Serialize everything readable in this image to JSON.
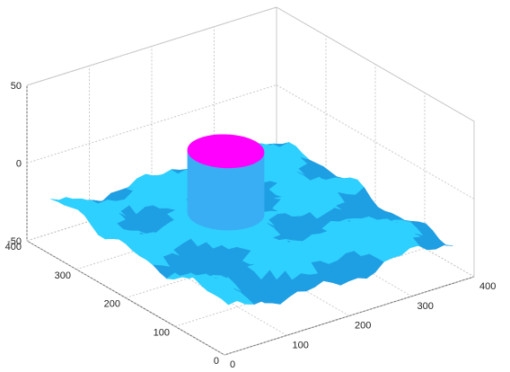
{
  "chart_data": {
    "type": "surface",
    "title": "",
    "xlabel": "",
    "ylabel": "",
    "zlabel": "",
    "xlim": [
      0,
      400
    ],
    "ylim": [
      0,
      400
    ],
    "zlim": [
      -50,
      50
    ],
    "grid": true,
    "colors": {
      "surface_base": "#2ed0ff",
      "surface_shadow": "#1f9fe3",
      "cylinder_side": "#39aef4",
      "cylinder_top": "#ff00ff",
      "grid": "#c8c8c8",
      "axis": "#666666"
    },
    "x_ticks": [
      {
        "value": 0,
        "label": "0"
      },
      {
        "value": 100,
        "label": "100"
      },
      {
        "value": 200,
        "label": "200"
      },
      {
        "value": 300,
        "label": "300"
      },
      {
        "value": 400,
        "label": "400"
      }
    ],
    "y_ticks": [
      {
        "value": 0,
        "label": "0"
      },
      {
        "value": 100,
        "label": "100"
      },
      {
        "value": 200,
        "label": "200"
      },
      {
        "value": 300,
        "label": "300"
      },
      {
        "value": 400,
        "label": "400"
      }
    ],
    "z_ticks": [
      {
        "value": -50,
        "label": "-50"
      },
      {
        "value": 0,
        "label": "0"
      },
      {
        "value": 50,
        "label": "50"
      }
    ],
    "surface": {
      "x_range": [
        30,
        390
      ],
      "y_range": [
        30,
        390
      ],
      "base_level": -30,
      "noise_amplitude": 5
    },
    "cylinder": {
      "center_x": 200,
      "center_y": 250,
      "radius": 48,
      "top_z": 10
    }
  }
}
